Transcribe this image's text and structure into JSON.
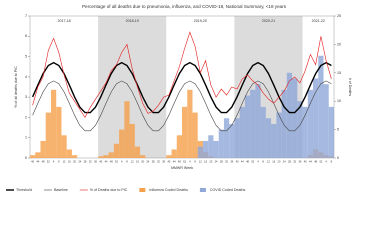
{
  "chart_data": {
    "type": "line",
    "title": "Percentage of all deaths due to pneumonia, influenza, and COVID-19, National Summary, <18 years",
    "x_label": "MMWR Week",
    "y_label": "% of all deaths due to PIC",
    "y2_label": "# of Deaths",
    "seasons": [
      {
        "label": "2017-18",
        "shaded": false
      },
      {
        "label": "2018-19",
        "shaded": true
      },
      {
        "label": "2019-20",
        "shaded": false
      },
      {
        "label": "2020-21",
        "shaded": true
      },
      {
        "label": "2021-22",
        "shaded": false
      }
    ],
    "categories": [
      "40",
      "44",
      "48",
      "52",
      "4",
      "8",
      "12",
      "16",
      "20",
      "24",
      "28",
      "32",
      "36",
      "40",
      "44",
      "48",
      "52",
      "4",
      "8",
      "12",
      "16",
      "20",
      "24",
      "28",
      "32",
      "36",
      "40",
      "44",
      "48",
      "52",
      "4",
      "8",
      "12",
      "16",
      "20",
      "24",
      "28",
      "32",
      "36",
      "40",
      "44",
      "48",
      "52",
      "4",
      "8",
      "12",
      "16",
      "20",
      "24",
      "28",
      "32",
      "36",
      "40",
      "44",
      "48",
      "52",
      "4",
      "8"
    ],
    "ylim": [
      0,
      7
    ],
    "yticks": [
      0,
      1,
      2,
      3,
      4,
      5,
      6,
      7
    ],
    "y2lim": [
      0,
      25
    ],
    "y2ticks": [
      0,
      5,
      10,
      15,
      20,
      25
    ],
    "legend": "bottom",
    "series": [
      {
        "name": "Threshold",
        "kind": "line",
        "color": "#000000",
        "values": [
          3.01,
          3.6,
          4.16,
          4.56,
          4.7,
          4.56,
          4.16,
          3.6,
          3.01,
          2.51,
          2.24,
          2.24,
          2.51,
          3.01,
          3.6,
          4.16,
          4.56,
          4.7,
          4.56,
          4.16,
          3.6,
          3.01,
          2.51,
          2.24,
          2.24,
          2.51,
          3.01,
          3.6,
          4.16,
          4.56,
          4.7,
          4.56,
          4.16,
          3.6,
          3.01,
          2.51,
          2.24,
          2.24,
          2.51,
          3.01,
          3.6,
          4.16,
          4.56,
          4.7,
          4.56,
          4.16,
          3.6,
          3.01,
          2.51,
          2.24,
          2.24,
          2.51,
          3.01,
          3.6,
          4.16,
          4.56,
          4.7,
          4.56
        ]
      },
      {
        "name": "Baseline",
        "kind": "line",
        "color": "#444444",
        "values": [
          2.11,
          2.7,
          3.26,
          3.66,
          3.8,
          3.66,
          3.26,
          2.7,
          2.11,
          1.61,
          1.34,
          1.34,
          1.61,
          2.11,
          2.7,
          3.26,
          3.66,
          3.8,
          3.66,
          3.26,
          2.7,
          2.11,
          1.61,
          1.34,
          1.34,
          1.61,
          2.11,
          2.7,
          3.26,
          3.66,
          3.8,
          3.66,
          3.26,
          2.7,
          2.11,
          1.61,
          1.34,
          1.34,
          1.61,
          2.11,
          2.7,
          3.26,
          3.66,
          3.8,
          3.66,
          3.26,
          2.7,
          2.11,
          1.61,
          1.34,
          1.34,
          1.61,
          2.11,
          2.7,
          3.26,
          3.66,
          3.8,
          3.66
        ]
      },
      {
        "name": "% of Deaths due to PIC",
        "kind": "line",
        "color": "#e41a1c",
        "values": [
          2.6,
          3.5,
          4.0,
          5.3,
          5.9,
          5.2,
          4.1,
          3.2,
          2.8,
          2.4,
          2.0,
          2.5,
          2.9,
          3.3,
          3.7,
          4.3,
          4.6,
          5.2,
          5.6,
          4.4,
          3.5,
          2.7,
          2.2,
          2.3,
          2.6,
          3.0,
          3.1,
          3.8,
          4.5,
          5.4,
          6.2,
          5.5,
          4.2,
          4.8,
          3.6,
          3.0,
          3.4,
          3.1,
          3.5,
          3.4,
          3.9,
          4.1,
          3.8,
          3.6,
          3.2,
          2.9,
          2.7,
          3.0,
          3.3,
          3.8,
          4.0,
          3.7,
          4.3,
          5.1,
          4.6,
          6.0,
          4.8,
          3.9
        ]
      },
      {
        "name": "Influenza Coded Deaths",
        "kind": "bar",
        "axis": "y2",
        "color": "#f5a04a",
        "values": [
          0.5,
          1,
          3,
          8,
          12,
          9,
          4,
          1.5,
          0.5,
          0,
          0,
          0,
          0,
          0.3,
          0.5,
          1,
          2.5,
          5,
          10,
          6,
          2,
          0.5,
          0,
          0,
          0,
          0,
          0.5,
          1.5,
          4,
          9,
          12,
          8,
          3,
          1,
          0.3,
          0,
          0,
          0,
          0,
          0,
          0,
          0,
          0,
          0,
          0,
          0,
          0,
          0,
          0,
          0,
          0,
          0,
          0,
          0.5,
          1.5,
          1,
          0.5,
          0.3
        ]
      },
      {
        "name": "COVID Coded Deaths",
        "kind": "bar",
        "axis": "y2",
        "color": "#8fa8d8",
        "values": [
          0,
          0,
          0,
          0,
          0,
          0,
          0,
          0,
          0,
          0,
          0,
          0,
          0,
          0,
          0,
          0,
          0,
          0,
          0,
          0,
          0,
          0,
          0,
          0,
          0,
          0,
          0,
          0,
          0,
          0,
          0,
          0,
          2,
          3,
          4,
          3,
          5,
          7,
          6,
          7,
          9,
          11,
          12,
          13,
          9,
          7,
          6,
          8,
          12,
          15,
          14,
          10,
          9,
          12,
          14,
          18,
          13,
          9
        ]
      }
    ]
  }
}
